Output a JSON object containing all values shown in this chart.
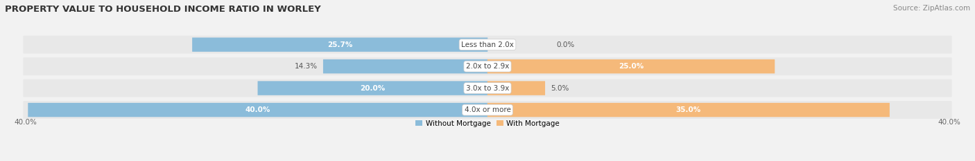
{
  "title": "PROPERTY VALUE TO HOUSEHOLD INCOME RATIO IN WORLEY",
  "source": "Source: ZipAtlas.com",
  "categories": [
    "Less than 2.0x",
    "2.0x to 2.9x",
    "3.0x to 3.9x",
    "4.0x or more"
  ],
  "without_mortgage": [
    25.7,
    14.3,
    20.0,
    40.0
  ],
  "with_mortgage": [
    0.0,
    25.0,
    5.0,
    35.0
  ],
  "blue_color": "#8bbcda",
  "orange_color": "#f5b97a",
  "bg_color": "#f2f2f2",
  "row_bg_color": "#e8e8e8",
  "max_val": 40.0,
  "axis_left_label": "40.0%",
  "axis_right_label": "40.0%",
  "title_fontsize": 9.5,
  "source_fontsize": 7.5,
  "label_fontsize": 7.5,
  "cat_fontsize": 7.5,
  "bar_height": 0.62,
  "figsize": [
    14.06,
    2.33
  ],
  "dpi": 100
}
